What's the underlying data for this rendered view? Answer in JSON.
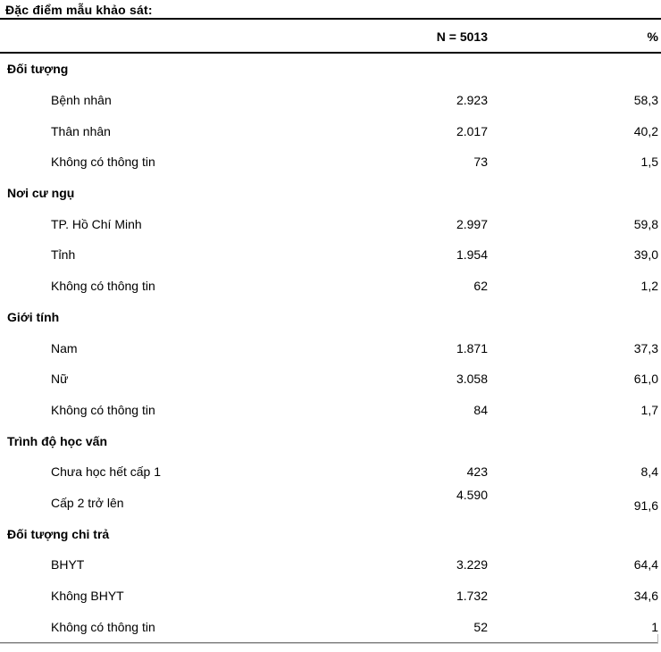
{
  "title": "Đặc điểm mẫu khảo sát:",
  "table": {
    "col_n_header": "N = 5013",
    "col_pct_header": "%",
    "sections": [
      {
        "name": "Đối tượng",
        "rows": [
          {
            "label": "Bệnh nhân",
            "n": "2.923",
            "pct": "58,3"
          },
          {
            "label": "Thân nhân",
            "n": "2.017",
            "pct": "40,2"
          },
          {
            "label": "Không có thông tin",
            "n": "73",
            "pct": "1,5"
          }
        ]
      },
      {
        "name": "Nơi cư ngụ",
        "rows": [
          {
            "label": "TP. Hồ Chí Minh",
            "n": "2.997",
            "pct": "59,8"
          },
          {
            "label": "Tỉnh",
            "n": "1.954",
            "pct": "39,0"
          },
          {
            "label": "Không có thông tin",
            "n": "62",
            "pct": "1,2"
          }
        ]
      },
      {
        "name": "Giới tính",
        "rows": [
          {
            "label": "Nam",
            "n": "1.871",
            "pct": "37,3"
          },
          {
            "label": "Nữ",
            "n": "3.058",
            "pct": "61,0"
          },
          {
            "label": "Không có thông tin",
            "n": "84",
            "pct": "1,7"
          }
        ]
      },
      {
        "name": "Trình độ học vấn",
        "rows": [
          {
            "label": "Chưa học hết cấp 1",
            "n": "423",
            "pct": "8,4"
          },
          {
            "label": "Cấp 2 trở lên",
            "n": "4.590",
            "pct": "91,6",
            "raised": true
          }
        ]
      },
      {
        "name": "Đối tượng chi trả",
        "rows": [
          {
            "label": "BHYT",
            "n": "3.229",
            "pct": "64,4"
          },
          {
            "label": "Không BHYT",
            "n": "1.732",
            "pct": "34,6"
          },
          {
            "label": "Không có thông tin",
            "n": "52",
            "pct": "1"
          }
        ]
      }
    ]
  }
}
